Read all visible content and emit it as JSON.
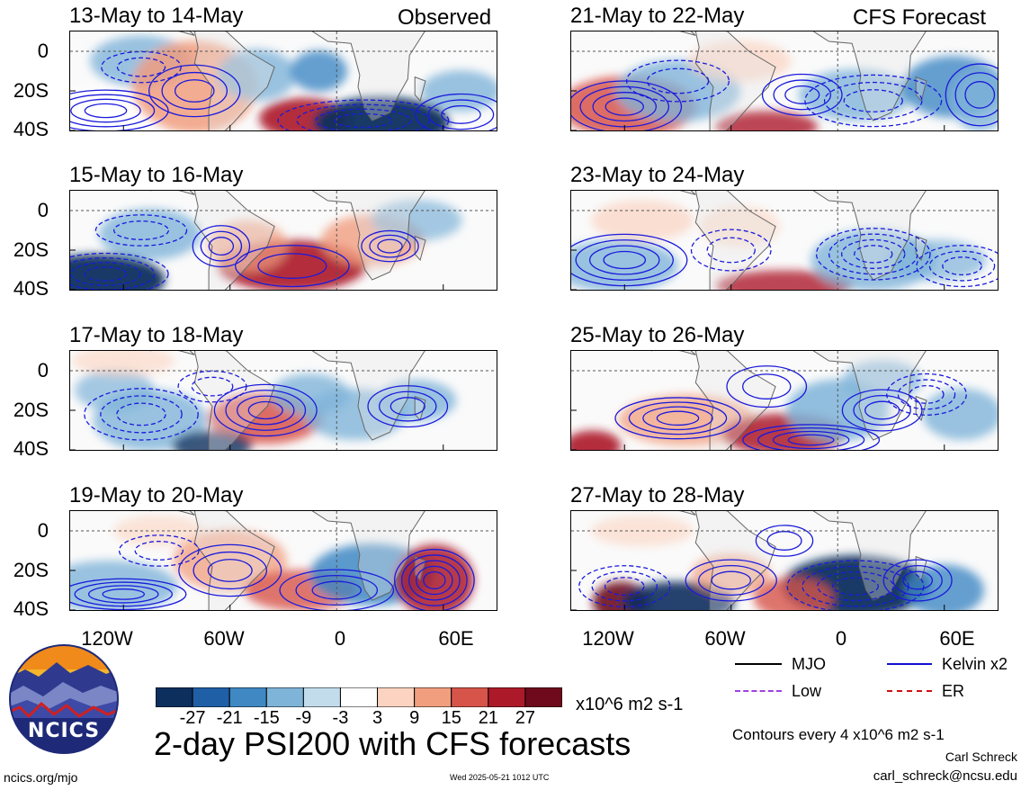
{
  "panels": [
    {
      "id": "p1",
      "title": "13-May to 14-May",
      "tag": "Observed"
    },
    {
      "id": "p2",
      "title": "21-May to 22-May",
      "tag": "CFS Forecast"
    },
    {
      "id": "p3",
      "title": "15-May to 16-May",
      "tag": ""
    },
    {
      "id": "p4",
      "title": "23-May to 24-May",
      "tag": ""
    },
    {
      "id": "p5",
      "title": "17-May to 18-May",
      "tag": ""
    },
    {
      "id": "p6",
      "title": "25-May to 26-May",
      "tag": ""
    },
    {
      "id": "p7",
      "title": "19-May to 20-May",
      "tag": ""
    },
    {
      "id": "p8",
      "title": "27-May to 28-May",
      "tag": ""
    }
  ],
  "lat_labels": [
    "0",
    "20S",
    "40S"
  ],
  "lon_labels": [
    "120W",
    "60W",
    "0",
    "60E"
  ],
  "legend": {
    "mjo": "MJO",
    "kelvin": "Kelvin x2",
    "low": "Low",
    "er": "ER",
    "colors": {
      "mjo": "#000000",
      "kelvin": "#1010d0",
      "low": "#a040e0",
      "er": "#d01010"
    }
  },
  "colorbar": {
    "ticks": [
      "-27",
      "-21",
      "-15",
      "-9",
      "-3",
      "3",
      "9",
      "15",
      "21",
      "27"
    ],
    "colors": [
      "#0d2f5e",
      "#1f5fa6",
      "#3f88c4",
      "#7fb4d9",
      "#c3dcec",
      "#ffffff",
      "#fbd3c0",
      "#f19e7f",
      "#d7544a",
      "#ac1a2a",
      "#6e0a1c"
    ],
    "units": "x10^6 m2 s-1"
  },
  "main_title": "2-day PSI200 with CFS forecasts",
  "contours_note": "Contours every 4 x10^6 m2 s-1",
  "author": "Carl Schreck",
  "email": "carl_schreck@ncsu.edu",
  "site": "ncics.org/mjo",
  "timestamp": "Wed 2025-05-21 1012 UTC",
  "logo_text": "NCICS"
}
